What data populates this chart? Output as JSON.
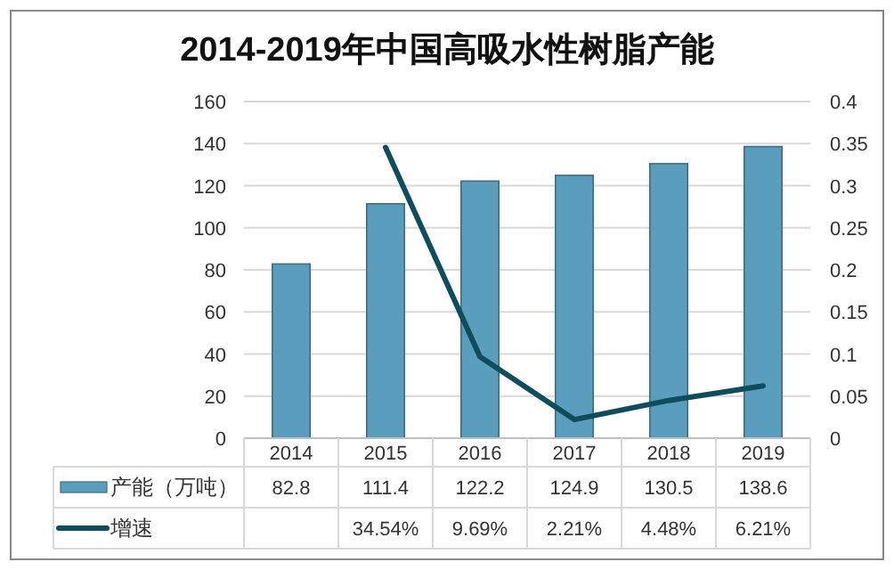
{
  "chart_data": {
    "type": "bar",
    "title": "2014-2019年中国高吸水性树脂产能",
    "categories": [
      "2014",
      "2015",
      "2016",
      "2017",
      "2018",
      "2019"
    ],
    "series": [
      {
        "name": "产能（万吨）",
        "color": "#5b9dbd",
        "values": [
          82.8,
          111.4,
          122.2,
          124.9,
          130.5,
          138.6
        ],
        "value_labels": [
          "82.8",
          "111.4",
          "122.2",
          "124.9",
          "130.5",
          "138.6"
        ]
      },
      {
        "name": "增速",
        "type": "line",
        "axis": "y2",
        "color": "#0f4c5c",
        "values": [
          null,
          0.3454,
          0.0969,
          0.0221,
          0.0448,
          0.0621
        ],
        "value_labels": [
          null,
          "34.54%",
          "9.69%",
          "2.21%",
          "4.48%",
          "6.21%"
        ]
      }
    ],
    "ylim": [
      0,
      160
    ],
    "yticks": [
      0,
      20,
      40,
      60,
      80,
      100,
      120,
      140,
      160
    ],
    "y2lim": [
      0,
      0.4
    ],
    "y2ticks": [
      0,
      0.05,
      0.1,
      0.15,
      0.2,
      0.25,
      0.3,
      0.35,
      0.4
    ],
    "grid": "y",
    "legend": "bottom",
    "marker": "none",
    "line_style": "solid"
  }
}
